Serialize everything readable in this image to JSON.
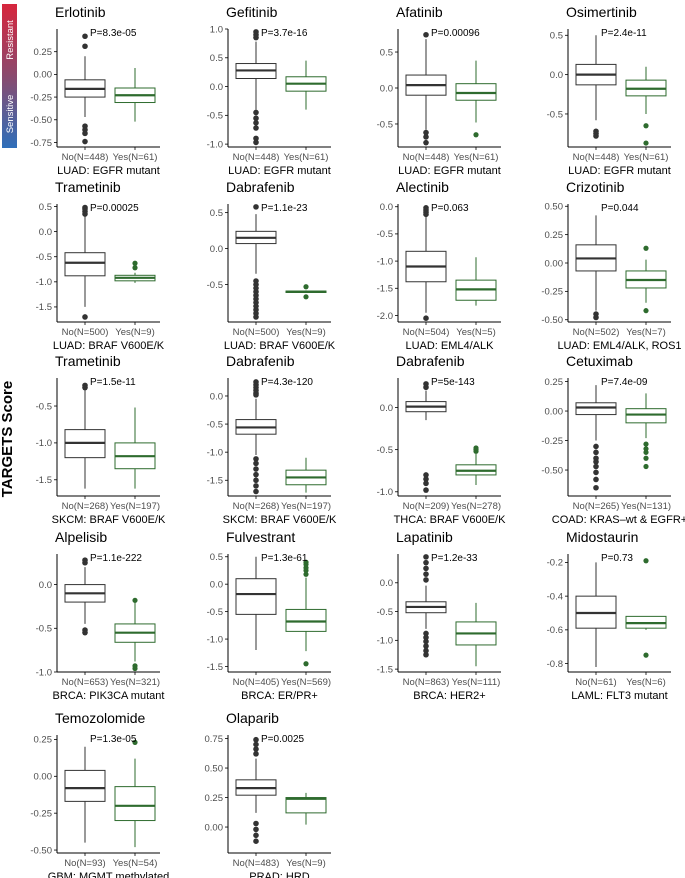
{
  "figure": {
    "y_axis_label": "TARGETS Score"
  },
  "legend": {
    "top_label": "Resistant",
    "bottom_label": "Sensitive",
    "top_color": "#d7263d",
    "bottom_color": "#2f6fba"
  },
  "colors": {
    "no_group": "#333333",
    "yes_group": "#2e6b2e",
    "axis": "#000000",
    "tick_text": "#4d4d4d"
  },
  "chart_data": [
    {
      "type": "box",
      "title": "Erlotinib",
      "xlabel": "LUAD: EGFR mutant",
      "pvalue": "P=8.3e-05",
      "ylim": [
        -0.8,
        0.5
      ],
      "yticks": [
        0.25,
        0.0,
        -0.25,
        -0.5,
        -0.75
      ],
      "ytick_labels": [
        "0.25",
        "0.00",
        "-0.25",
        "-0.50",
        "-0.75"
      ],
      "groups": [
        {
          "label": "No(N=448)",
          "min": -0.47,
          "q1": -0.25,
          "median": -0.16,
          "q3": -0.06,
          "max": 0.2,
          "outliers": [
            0.42,
            0.31,
            -0.57,
            -0.61,
            -0.65,
            -0.74
          ]
        },
        {
          "label": "Yes(N=61)",
          "min": -0.52,
          "q1": -0.31,
          "median": -0.23,
          "q3": -0.15,
          "max": 0.07,
          "outliers": []
        }
      ]
    },
    {
      "type": "box",
      "title": "Gefitinib",
      "xlabel": "LUAD: EGFR mutant",
      "pvalue": "P=3.7e-16",
      "ylim": [
        -1.05,
        1.0
      ],
      "yticks": [
        1.0,
        0.5,
        0.0,
        -0.5,
        -1.0
      ],
      "ytick_labels": [
        "1.0",
        "0.5",
        "0.0",
        "-0.5",
        "-1.0"
      ],
      "groups": [
        {
          "label": "No(N=448)",
          "min": -0.4,
          "q1": 0.14,
          "median": 0.28,
          "q3": 0.4,
          "max": 0.78,
          "outliers": [
            0.85,
            0.9,
            0.95,
            -0.45,
            -0.55,
            -0.63,
            -0.72,
            -0.9,
            -0.97
          ]
        },
        {
          "label": "Yes(N=61)",
          "min": -0.4,
          "q1": -0.08,
          "median": 0.05,
          "q3": 0.17,
          "max": 0.45,
          "outliers": []
        }
      ]
    },
    {
      "type": "box",
      "title": "Afatinib",
      "xlabel": "LUAD: EGFR mutant",
      "pvalue": "P=0.00096",
      "ylim": [
        -0.82,
        0.82
      ],
      "yticks": [
        0.5,
        0.0,
        -0.5
      ],
      "ytick_labels": [
        "0.5",
        "0.0",
        "-0.5"
      ],
      "groups": [
        {
          "label": "No(N=448)",
          "min": -0.58,
          "q1": -0.1,
          "median": 0.04,
          "q3": 0.18,
          "max": 0.68,
          "outliers": [
            0.74,
            -0.62,
            -0.68,
            -0.76
          ]
        },
        {
          "label": "Yes(N=61)",
          "min": -0.48,
          "q1": -0.17,
          "median": -0.07,
          "q3": 0.06,
          "max": 0.38,
          "outliers": [
            -0.65
          ]
        }
      ]
    },
    {
      "type": "box",
      "title": "Osimertinib",
      "xlabel": "LUAD: EGFR mutant",
      "pvalue": "P=2.4e-11",
      "ylim": [
        -0.92,
        0.58
      ],
      "yticks": [
        0.5,
        0.0,
        -0.5
      ],
      "ytick_labels": [
        "0.5",
        "0.0",
        "-0.5"
      ],
      "groups": [
        {
          "label": "No(N=448)",
          "min": -0.58,
          "q1": -0.13,
          "median": 0.0,
          "q3": 0.13,
          "max": 0.5,
          "outliers": [
            -0.72,
            -0.75,
            -0.78
          ]
        },
        {
          "label": "Yes(N=61)",
          "min": -0.5,
          "q1": -0.27,
          "median": -0.18,
          "q3": -0.07,
          "max": 0.1,
          "outliers": [
            -0.65,
            -0.87
          ]
        }
      ]
    },
    {
      "type": "box",
      "title": "Trametinib",
      "xlabel": "LUAD: BRAF V600E/K",
      "pvalue": "P=0.00025",
      "ylim": [
        -1.8,
        0.55
      ],
      "yticks": [
        0.5,
        0.0,
        -0.5,
        -1.0,
        -1.5
      ],
      "ytick_labels": [
        "0.5",
        "0.0",
        "-0.5",
        "-1.0",
        "-1.5"
      ],
      "groups": [
        {
          "label": "No(N=500)",
          "min": -1.5,
          "q1": -0.88,
          "median": -0.62,
          "q3": -0.42,
          "max": 0.3,
          "outliers": [
            0.4,
            0.48,
            0.35,
            0.45,
            -1.7
          ]
        },
        {
          "label": "Yes(N=9)",
          "min": -1.02,
          "q1": -0.98,
          "median": -0.92,
          "q3": -0.87,
          "max": -0.82,
          "outliers": [
            -0.63,
            -0.72
          ]
        }
      ]
    },
    {
      "type": "box",
      "title": "Dabrafenib",
      "xlabel": "LUAD: BRAF V600E/K",
      "pvalue": "P=1.1e-23",
      "ylim": [
        -1.02,
        0.62
      ],
      "yticks": [
        0.5,
        0.0,
        -0.5
      ],
      "ytick_labels": [
        "0.5",
        "0.0",
        "-0.5"
      ],
      "groups": [
        {
          "label": "No(N=500)",
          "min": -0.35,
          "q1": 0.07,
          "median": 0.15,
          "q3": 0.24,
          "max": 0.48,
          "outliers": [
            0.58,
            -0.45,
            -0.5,
            -0.55,
            -0.6,
            -0.65,
            -0.7,
            -0.75,
            -0.8,
            -0.85,
            -0.9,
            -0.95
          ]
        },
        {
          "label": "Yes(N=9)",
          "min": -0.61,
          "q1": -0.61,
          "median": -0.6,
          "q3": -0.59,
          "max": -0.58,
          "outliers": [
            -0.53,
            -0.67
          ]
        }
      ]
    },
    {
      "type": "box",
      "title": "Alectinib",
      "xlabel": "LUAD: EML4/ALK",
      "pvalue": "P=0.063",
      "ylim": [
        -2.12,
        0.05
      ],
      "yticks": [
        0.0,
        -0.5,
        -1.0,
        -1.5,
        -2.0
      ],
      "ytick_labels": [
        "0.0",
        "-0.5",
        "-1.0",
        "-1.5",
        "-2.0"
      ],
      "groups": [
        {
          "label": "No(N=504)",
          "min": -1.95,
          "q1": -1.38,
          "median": -1.1,
          "q3": -0.82,
          "max": -0.05,
          "outliers": [
            -0.02,
            -0.06,
            -0.1,
            -0.14,
            -2.05
          ]
        },
        {
          "label": "Yes(N=5)",
          "min": -1.82,
          "q1": -1.72,
          "median": -1.52,
          "q3": -1.35,
          "max": -0.93,
          "outliers": []
        }
      ]
    },
    {
      "type": "box",
      "title": "Crizotinib",
      "xlabel": "LUAD: EML4/ALK, ROS1",
      "pvalue": "P=0.044",
      "ylim": [
        -0.52,
        0.52
      ],
      "yticks": [
        0.5,
        0.25,
        0.0,
        -0.25,
        -0.5
      ],
      "ytick_labels": [
        "0.50",
        "0.25",
        "0.00",
        "-0.25",
        "-0.50"
      ],
      "groups": [
        {
          "label": "No(N=502)",
          "min": -0.42,
          "q1": -0.07,
          "median": 0.04,
          "q3": 0.16,
          "max": 0.42,
          "outliers": [
            -0.45,
            -0.48
          ]
        },
        {
          "label": "Yes(N=7)",
          "min": -0.35,
          "q1": -0.22,
          "median": -0.15,
          "q3": -0.07,
          "max": 0.03,
          "outliers": [
            0.13,
            -0.42
          ]
        }
      ]
    },
    {
      "type": "box",
      "title": "Trametinib",
      "xlabel": "SKCM: BRAF V600E/K",
      "pvalue": "P=1.5e-11",
      "ylim": [
        -1.72,
        -0.12
      ],
      "yticks": [
        -0.5,
        -1.0,
        -1.5
      ],
      "ytick_labels": [
        "-0.5",
        "-1.0",
        "-1.5"
      ],
      "groups": [
        {
          "label": "No(N=268)",
          "min": -1.62,
          "q1": -1.2,
          "median": -1.0,
          "q3": -0.82,
          "max": -0.28,
          "outliers": [
            -0.22,
            -0.25
          ]
        },
        {
          "label": "Yes(N=197)",
          "min": -1.62,
          "q1": -1.35,
          "median": -1.18,
          "q3": -1.0,
          "max": -0.52,
          "outliers": []
        }
      ]
    },
    {
      "type": "box",
      "title": "Dabrafenib",
      "xlabel": "SKCM: BRAF V600E/K",
      "pvalue": "P=4.3e-120",
      "ylim": [
        -1.78,
        0.32
      ],
      "yticks": [
        0.0,
        -0.5,
        -1.0,
        -1.5
      ],
      "ytick_labels": [
        "0.0",
        "-0.5",
        "-1.0",
        "-1.5"
      ],
      "groups": [
        {
          "label": "No(N=268)",
          "min": -1.05,
          "q1": -0.68,
          "median": -0.56,
          "q3": -0.42,
          "max": -0.05,
          "outliers": [
            0.25,
            0.2,
            0.15,
            0.1,
            0.05,
            0.02,
            -1.12,
            -1.2,
            -1.3,
            -1.4,
            -1.5,
            -1.6,
            -1.7
          ]
        },
        {
          "label": "Yes(N=197)",
          "min": -1.72,
          "q1": -1.58,
          "median": -1.45,
          "q3": -1.32,
          "max": -1.1,
          "outliers": []
        }
      ]
    },
    {
      "type": "box",
      "title": "Dabrafenib",
      "xlabel": "THCA: BRAF V600E/K",
      "pvalue": "P=5e-143",
      "ylim": [
        -1.05,
        0.35
      ],
      "yticks": [
        0.0,
        -0.5,
        -1.0
      ],
      "ytick_labels": [
        "0.0",
        "-0.5",
        "-1.0"
      ],
      "groups": [
        {
          "label": "No(N=209)",
          "min": -0.15,
          "q1": -0.05,
          "median": 0.01,
          "q3": 0.07,
          "max": 0.2,
          "outliers": [
            0.24,
            0.28,
            -0.8,
            -0.85,
            -0.9,
            -0.98
          ]
        },
        {
          "label": "Yes(N=278)",
          "min": -0.92,
          "q1": -0.8,
          "median": -0.75,
          "q3": -0.68,
          "max": -0.55,
          "outliers": [
            -0.48,
            -0.5,
            -0.52
          ]
        }
      ]
    },
    {
      "type": "box",
      "title": "Cetuximab",
      "xlabel": "COAD: KRAS–wt & EGFR+",
      "pvalue": "P=7.4e-09",
      "ylim": [
        -0.72,
        0.28
      ],
      "yticks": [
        0.25,
        0.0,
        -0.25,
        -0.5
      ],
      "ytick_labels": [
        "0.25",
        "0.00",
        "-0.25",
        "-0.50"
      ],
      "groups": [
        {
          "label": "No(N=265)",
          "min": -0.25,
          "q1": -0.03,
          "median": 0.03,
          "q3": 0.07,
          "max": 0.22,
          "outliers": [
            -0.3,
            -0.35,
            -0.4,
            -0.43,
            -0.47,
            -0.52,
            -0.58,
            -0.65
          ]
        },
        {
          "label": "Yes(N=131)",
          "min": -0.23,
          "q1": -0.1,
          "median": -0.03,
          "q3": 0.02,
          "max": 0.15,
          "outliers": [
            -0.28,
            -0.32,
            -0.35,
            -0.4,
            -0.47
          ]
        }
      ]
    },
    {
      "type": "box",
      "title": "Alpelisib",
      "xlabel": "BRCA: PIK3CA mutant",
      "pvalue": "P=1.1e-222",
      "ylim": [
        -1.0,
        0.35
      ],
      "yticks": [
        0.0,
        -0.5,
        -1.0
      ],
      "ytick_labels": [
        "0.0",
        "-0.5",
        "-1.0"
      ],
      "groups": [
        {
          "label": "No(N=653)",
          "min": -0.45,
          "q1": -0.2,
          "median": -0.1,
          "q3": 0.0,
          "max": 0.2,
          "outliers": [
            0.25,
            0.28,
            -0.52,
            -0.55
          ]
        },
        {
          "label": "Yes(N=321)",
          "min": -0.88,
          "q1": -0.66,
          "median": -0.55,
          "q3": -0.45,
          "max": -0.2,
          "outliers": [
            -0.18,
            -0.93,
            -0.96
          ]
        }
      ]
    },
    {
      "type": "box",
      "title": "Fulvestrant",
      "xlabel": "BRCA: ER/PR+",
      "pvalue": "P=1.3e-61",
      "ylim": [
        -1.6,
        0.55
      ],
      "yticks": [
        0.5,
        0.0,
        -0.5,
        -1.0,
        -1.5
      ],
      "ytick_labels": [
        "0.5",
        "0.0",
        "-0.5",
        "-1.0",
        "-1.5"
      ],
      "groups": [
        {
          "label": "No(N=405)",
          "min": -1.2,
          "q1": -0.55,
          "median": -0.18,
          "q3": 0.1,
          "max": 0.5,
          "outliers": []
        },
        {
          "label": "Yes(N=569)",
          "min": -1.22,
          "q1": -0.86,
          "median": -0.68,
          "q3": -0.46,
          "max": 0.12,
          "outliers": [
            0.18,
            0.25,
            0.3,
            0.36,
            0.4,
            -1.45
          ]
        }
      ]
    },
    {
      "type": "box",
      "title": "Lapatinib",
      "xlabel": "BRCA: HER2+",
      "pvalue": "P=1.2e-33",
      "ylim": [
        -1.55,
        0.5
      ],
      "yticks": [
        0.0,
        -0.5,
        -1.0,
        -1.5
      ],
      "ytick_labels": [
        "0.0",
        "-0.5",
        "-1.0",
        "-1.5"
      ],
      "groups": [
        {
          "label": "No(N=863)",
          "min": -0.8,
          "q1": -0.52,
          "median": -0.42,
          "q3": -0.33,
          "max": -0.05,
          "outliers": [
            0.45,
            0.35,
            0.25,
            0.15,
            0.05,
            -0.88,
            -0.95,
            -1.02,
            -1.1,
            -1.18,
            -1.25
          ]
        },
        {
          "label": "Yes(N=111)",
          "min": -1.45,
          "q1": -1.08,
          "median": -0.88,
          "q3": -0.68,
          "max": -0.35,
          "outliers": []
        }
      ]
    },
    {
      "type": "box",
      "title": "Midostaurin",
      "xlabel": "LAML: FLT3 mutant",
      "pvalue": "P=0.73",
      "ylim": [
        -0.85,
        -0.15
      ],
      "yticks": [
        -0.2,
        -0.4,
        -0.6,
        -0.8
      ],
      "ytick_labels": [
        "-0.2",
        "-0.4",
        "-0.6",
        "-0.8"
      ],
      "groups": [
        {
          "label": "No(N=61)",
          "min": -0.82,
          "q1": -0.59,
          "median": -0.5,
          "q3": -0.4,
          "max": -0.2,
          "outliers": []
        },
        {
          "label": "Yes(N=6)",
          "min": -0.6,
          "q1": -0.59,
          "median": -0.56,
          "q3": -0.52,
          "max": -0.52,
          "outliers": [
            -0.19,
            -0.75
          ]
        }
      ]
    },
    {
      "type": "box",
      "title": "Temozolomide",
      "xlabel": "GBM: MGMT methylated",
      "pvalue": "P=1.3e-05",
      "ylim": [
        -0.52,
        0.28
      ],
      "yticks": [
        0.25,
        0.0,
        -0.25,
        -0.5
      ],
      "ytick_labels": [
        "0.25",
        "0.00",
        "-0.25",
        "-0.50"
      ],
      "groups": [
        {
          "label": "No(N=93)",
          "min": -0.45,
          "q1": -0.17,
          "median": -0.08,
          "q3": 0.04,
          "max": 0.2,
          "outliers": []
        },
        {
          "label": "Yes(N=54)",
          "min": -0.48,
          "q1": -0.3,
          "median": -0.2,
          "q3": -0.07,
          "max": 0.12,
          "outliers": [
            0.23
          ]
        }
      ]
    },
    {
      "type": "box",
      "title": "Olaparib",
      "xlabel": "PRAD: HRD",
      "pvalue": "P=0.0025",
      "ylim": [
        -0.22,
        0.78
      ],
      "yticks": [
        0.75,
        0.5,
        0.25,
        0.0
      ],
      "ytick_labels": [
        "0.75",
        "0.50",
        "0.25",
        "0.00"
      ],
      "groups": [
        {
          "label": "No(N=483)",
          "min": 0.12,
          "q1": 0.27,
          "median": 0.33,
          "q3": 0.4,
          "max": 0.58,
          "outliers": [
            0.62,
            0.66,
            0.7,
            0.74,
            0.03,
            -0.02,
            -0.07,
            -0.12
          ]
        },
        {
          "label": "Yes(N=9)",
          "min": 0.02,
          "q1": 0.12,
          "median": 0.24,
          "q3": 0.25,
          "max": 0.29,
          "outliers": []
        }
      ]
    }
  ]
}
